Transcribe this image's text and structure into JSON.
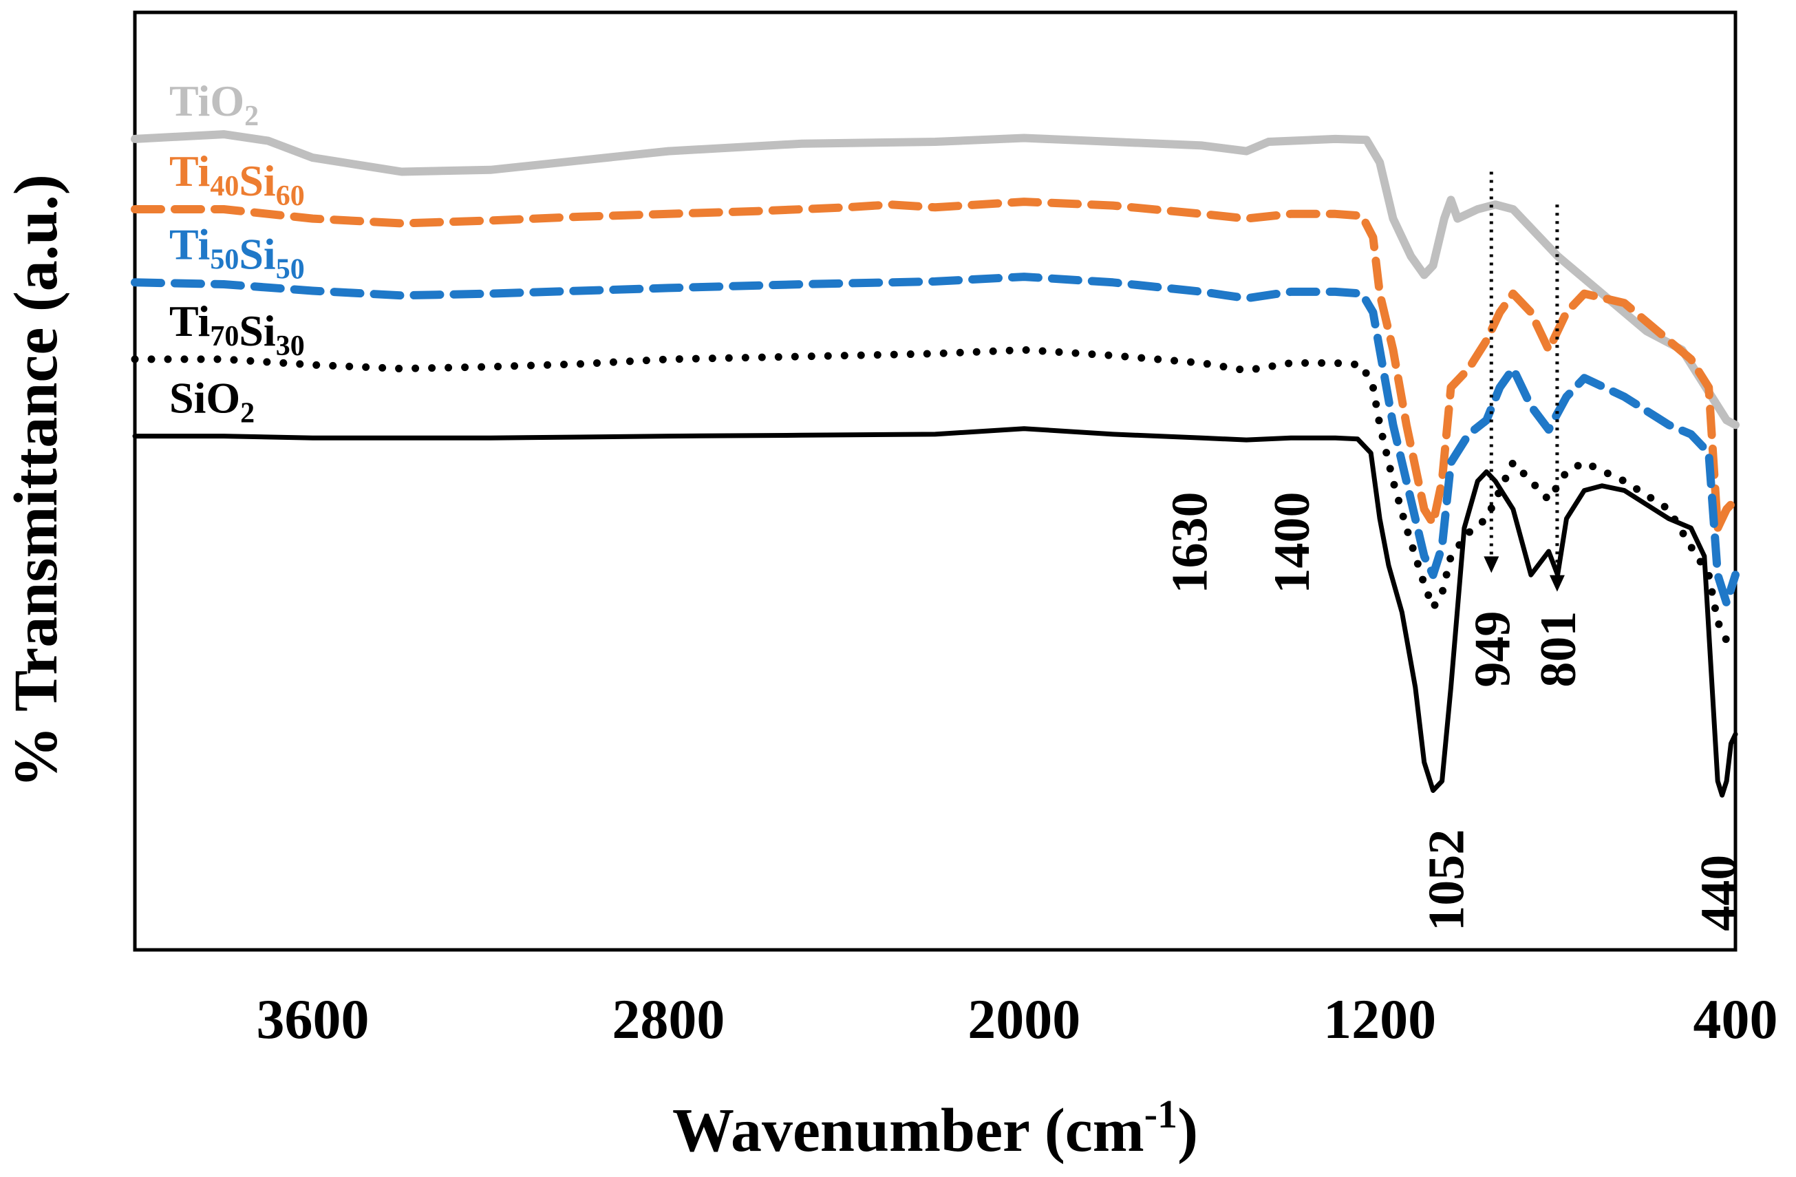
{
  "chart_data": {
    "type": "line",
    "title": "",
    "xlabel": "Wavenumber (cm-1)",
    "xlabel_parts": {
      "main": "Wavenumber (cm",
      "sup": "-1",
      "end": ")"
    },
    "ylabel": "% Transmittance (a.u.)",
    "xlim": [
      4000,
      400
    ],
    "ylim": [
      0,
      100
    ],
    "x_reversed": true,
    "x_ticks": [
      3600,
      2800,
      2000,
      1200,
      400
    ],
    "y_ticks_shown": false,
    "grid": false,
    "series": [
      {
        "name": "TiO2",
        "label_main": [
          "Ti",
          "O"
        ],
        "label_sub": [
          "",
          "2"
        ],
        "color": "#BFBFBF",
        "dash": "solid",
        "points": [
          [
            4000,
            86.5
          ],
          [
            3800,
            87.0
          ],
          [
            3700,
            86.3
          ],
          [
            3600,
            84.5
          ],
          [
            3400,
            83.0
          ],
          [
            3200,
            83.2
          ],
          [
            3000,
            84.2
          ],
          [
            2800,
            85.2
          ],
          [
            2500,
            86.0
          ],
          [
            2200,
            86.2
          ],
          [
            2000,
            86.6
          ],
          [
            1800,
            86.2
          ],
          [
            1600,
            85.8
          ],
          [
            1500,
            85.2
          ],
          [
            1450,
            86.2
          ],
          [
            1300,
            86.5
          ],
          [
            1230,
            86.4
          ],
          [
            1200,
            84.0
          ],
          [
            1170,
            78.0
          ],
          [
            1130,
            74.0
          ],
          [
            1100,
            72.0
          ],
          [
            1080,
            73.0
          ],
          [
            1055,
            78.0
          ],
          [
            1040,
            80.0
          ],
          [
            1025,
            78.0
          ],
          [
            980,
            79.0
          ],
          [
            940,
            79.5
          ],
          [
            900,
            79.0
          ],
          [
            860,
            77.0
          ],
          [
            800,
            74.0
          ],
          [
            700,
            70.0
          ],
          [
            600,
            66.0
          ],
          [
            520,
            64.0
          ],
          [
            480,
            61.0
          ],
          [
            440,
            58.0
          ],
          [
            420,
            56.5
          ],
          [
            400,
            56.0
          ]
        ]
      },
      {
        "name": "Ti40Si60",
        "label_main": [
          "Ti",
          "Si"
        ],
        "label_sub": [
          "40",
          "60"
        ],
        "color": "#ED7D31",
        "dash": "dashed",
        "points": [
          [
            4000,
            79.0
          ],
          [
            3800,
            79.0
          ],
          [
            3700,
            78.5
          ],
          [
            3600,
            78.0
          ],
          [
            3400,
            77.5
          ],
          [
            3200,
            77.8
          ],
          [
            3000,
            78.2
          ],
          [
            2600,
            78.8
          ],
          [
            2400,
            79.2
          ],
          [
            2300,
            79.5
          ],
          [
            2200,
            79.2
          ],
          [
            2000,
            79.8
          ],
          [
            1800,
            79.4
          ],
          [
            1600,
            78.5
          ],
          [
            1500,
            78.0
          ],
          [
            1400,
            78.5
          ],
          [
            1300,
            78.5
          ],
          [
            1240,
            78.3
          ],
          [
            1215,
            76.0
          ],
          [
            1200,
            70.0
          ],
          [
            1170,
            64.0
          ],
          [
            1140,
            56.0
          ],
          [
            1100,
            47.0
          ],
          [
            1080,
            45.5
          ],
          [
            1060,
            50.0
          ],
          [
            1040,
            60.0
          ],
          [
            1000,
            62.0
          ],
          [
            960,
            65.0
          ],
          [
            930,
            68.0
          ],
          [
            900,
            70.0
          ],
          [
            860,
            68.0
          ],
          [
            820,
            64.0
          ],
          [
            780,
            68.0
          ],
          [
            740,
            70.0
          ],
          [
            650,
            69.0
          ],
          [
            550,
            65.0
          ],
          [
            500,
            63.0
          ],
          [
            460,
            60.0
          ],
          [
            440,
            45.0
          ],
          [
            420,
            47.0
          ],
          [
            400,
            48.0
          ]
        ]
      },
      {
        "name": "Ti50Si50",
        "label_main": [
          "Ti",
          "Si"
        ],
        "label_sub": [
          "50",
          "50"
        ],
        "color": "#1F78C8",
        "dash": "dashed",
        "points": [
          [
            4000,
            71.2
          ],
          [
            3800,
            71.0
          ],
          [
            3600,
            70.3
          ],
          [
            3400,
            69.8
          ],
          [
            3200,
            70.0
          ],
          [
            3000,
            70.3
          ],
          [
            2800,
            70.6
          ],
          [
            2500,
            71.0
          ],
          [
            2200,
            71.3
          ],
          [
            2000,
            71.8
          ],
          [
            1800,
            71.2
          ],
          [
            1600,
            70.2
          ],
          [
            1500,
            69.5
          ],
          [
            1400,
            70.2
          ],
          [
            1300,
            70.2
          ],
          [
            1240,
            70.0
          ],
          [
            1215,
            68.0
          ],
          [
            1200,
            64.0
          ],
          [
            1170,
            56.0
          ],
          [
            1140,
            50.0
          ],
          [
            1100,
            42.0
          ],
          [
            1080,
            40.0
          ],
          [
            1060,
            43.0
          ],
          [
            1040,
            52.0
          ],
          [
            1000,
            55.0
          ],
          [
            960,
            56.5
          ],
          [
            930,
            60.0
          ],
          [
            900,
            62.0
          ],
          [
            860,
            58.0
          ],
          [
            820,
            55.5
          ],
          [
            780,
            59.0
          ],
          [
            740,
            61.0
          ],
          [
            650,
            59.0
          ],
          [
            550,
            56.0
          ],
          [
            500,
            55.0
          ],
          [
            460,
            53.0
          ],
          [
            440,
            40.0
          ],
          [
            420,
            37.0
          ],
          [
            400,
            40.0
          ]
        ]
      },
      {
        "name": "Ti70Si30",
        "label_main": [
          "Ti",
          "Si"
        ],
        "label_sub": [
          "70",
          "30"
        ],
        "color": "#000000",
        "dash": "dotted",
        "points": [
          [
            4000,
            63.0
          ],
          [
            3800,
            63.0
          ],
          [
            3600,
            62.4
          ],
          [
            3400,
            62.0
          ],
          [
            3200,
            62.2
          ],
          [
            3000,
            62.5
          ],
          [
            2800,
            63.0
          ],
          [
            2500,
            63.3
          ],
          [
            2200,
            63.6
          ],
          [
            2000,
            64.0
          ],
          [
            1800,
            63.4
          ],
          [
            1600,
            62.6
          ],
          [
            1500,
            61.8
          ],
          [
            1400,
            62.6
          ],
          [
            1300,
            62.6
          ],
          [
            1240,
            62.4
          ],
          [
            1215,
            60.0
          ],
          [
            1200,
            56.0
          ],
          [
            1170,
            50.0
          ],
          [
            1140,
            45.0
          ],
          [
            1100,
            39.0
          ],
          [
            1080,
            36.5
          ],
          [
            1060,
            38.0
          ],
          [
            1040,
            42.0
          ],
          [
            1000,
            44.5
          ],
          [
            960,
            46.0
          ],
          [
            930,
            49.0
          ],
          [
            900,
            52.0
          ],
          [
            860,
            50.0
          ],
          [
            820,
            48.0
          ],
          [
            780,
            51.0
          ],
          [
            740,
            52.0
          ],
          [
            650,
            50.0
          ],
          [
            550,
            47.0
          ],
          [
            500,
            43.0
          ],
          [
            460,
            40.0
          ],
          [
            440,
            35.0
          ],
          [
            420,
            33.0
          ],
          [
            400,
            32.0
          ]
        ]
      },
      {
        "name": "SiO2",
        "label_main": [
          "Si",
          "O"
        ],
        "label_sub": [
          "",
          "2"
        ],
        "color": "#000000",
        "dash": "solid",
        "points": [
          [
            4000,
            54.8
          ],
          [
            3800,
            54.8
          ],
          [
            3600,
            54.6
          ],
          [
            3400,
            54.6
          ],
          [
            3200,
            54.6
          ],
          [
            3000,
            54.7
          ],
          [
            2800,
            54.8
          ],
          [
            2500,
            54.9
          ],
          [
            2200,
            55.0
          ],
          [
            2000,
            55.6
          ],
          [
            1800,
            55.0
          ],
          [
            1600,
            54.6
          ],
          [
            1500,
            54.4
          ],
          [
            1400,
            54.6
          ],
          [
            1300,
            54.6
          ],
          [
            1250,
            54.5
          ],
          [
            1220,
            53.0
          ],
          [
            1200,
            46.0
          ],
          [
            1180,
            41.0
          ],
          [
            1150,
            36.0
          ],
          [
            1120,
            28.0
          ],
          [
            1100,
            20.0
          ],
          [
            1080,
            17.0
          ],
          [
            1060,
            18.0
          ],
          [
            1040,
            28.0
          ],
          [
            1010,
            45.0
          ],
          [
            980,
            50.0
          ],
          [
            960,
            51.0
          ],
          [
            940,
            50.0
          ],
          [
            900,
            47.0
          ],
          [
            860,
            40.0
          ],
          [
            820,
            42.5
          ],
          [
            800,
            40.0
          ],
          [
            780,
            46.0
          ],
          [
            740,
            49.0
          ],
          [
            700,
            49.5
          ],
          [
            650,
            49.0
          ],
          [
            550,
            46.0
          ],
          [
            500,
            45.0
          ],
          [
            470,
            42.0
          ],
          [
            455,
            30.0
          ],
          [
            440,
            18.0
          ],
          [
            430,
            16.5
          ],
          [
            420,
            18.0
          ],
          [
            410,
            22.0
          ],
          [
            400,
            23.0
          ]
        ]
      }
    ],
    "annotations": [
      {
        "text": "1630",
        "x": 1630,
        "y": 38,
        "rotation": -90
      },
      {
        "text": "1400",
        "x": 1400,
        "y": 38,
        "rotation": -90
      },
      {
        "text": "1052",
        "x": 1052,
        "y": 2,
        "rotation": -90
      },
      {
        "text": "949",
        "x": 949,
        "y": 28,
        "rotation": -90
      },
      {
        "text": "801",
        "x": 801,
        "y": 28,
        "rotation": -90
      },
      {
        "text": "440",
        "x": 440,
        "y": 2,
        "rotation": -90
      }
    ],
    "markers": [
      {
        "type": "dotted-arrow",
        "x": 949,
        "y_from": 83.0,
        "y_to": 40.5
      },
      {
        "type": "dotted-arrow",
        "x": 801,
        "y_from": 79.5,
        "y_to": 38.5
      }
    ]
  }
}
